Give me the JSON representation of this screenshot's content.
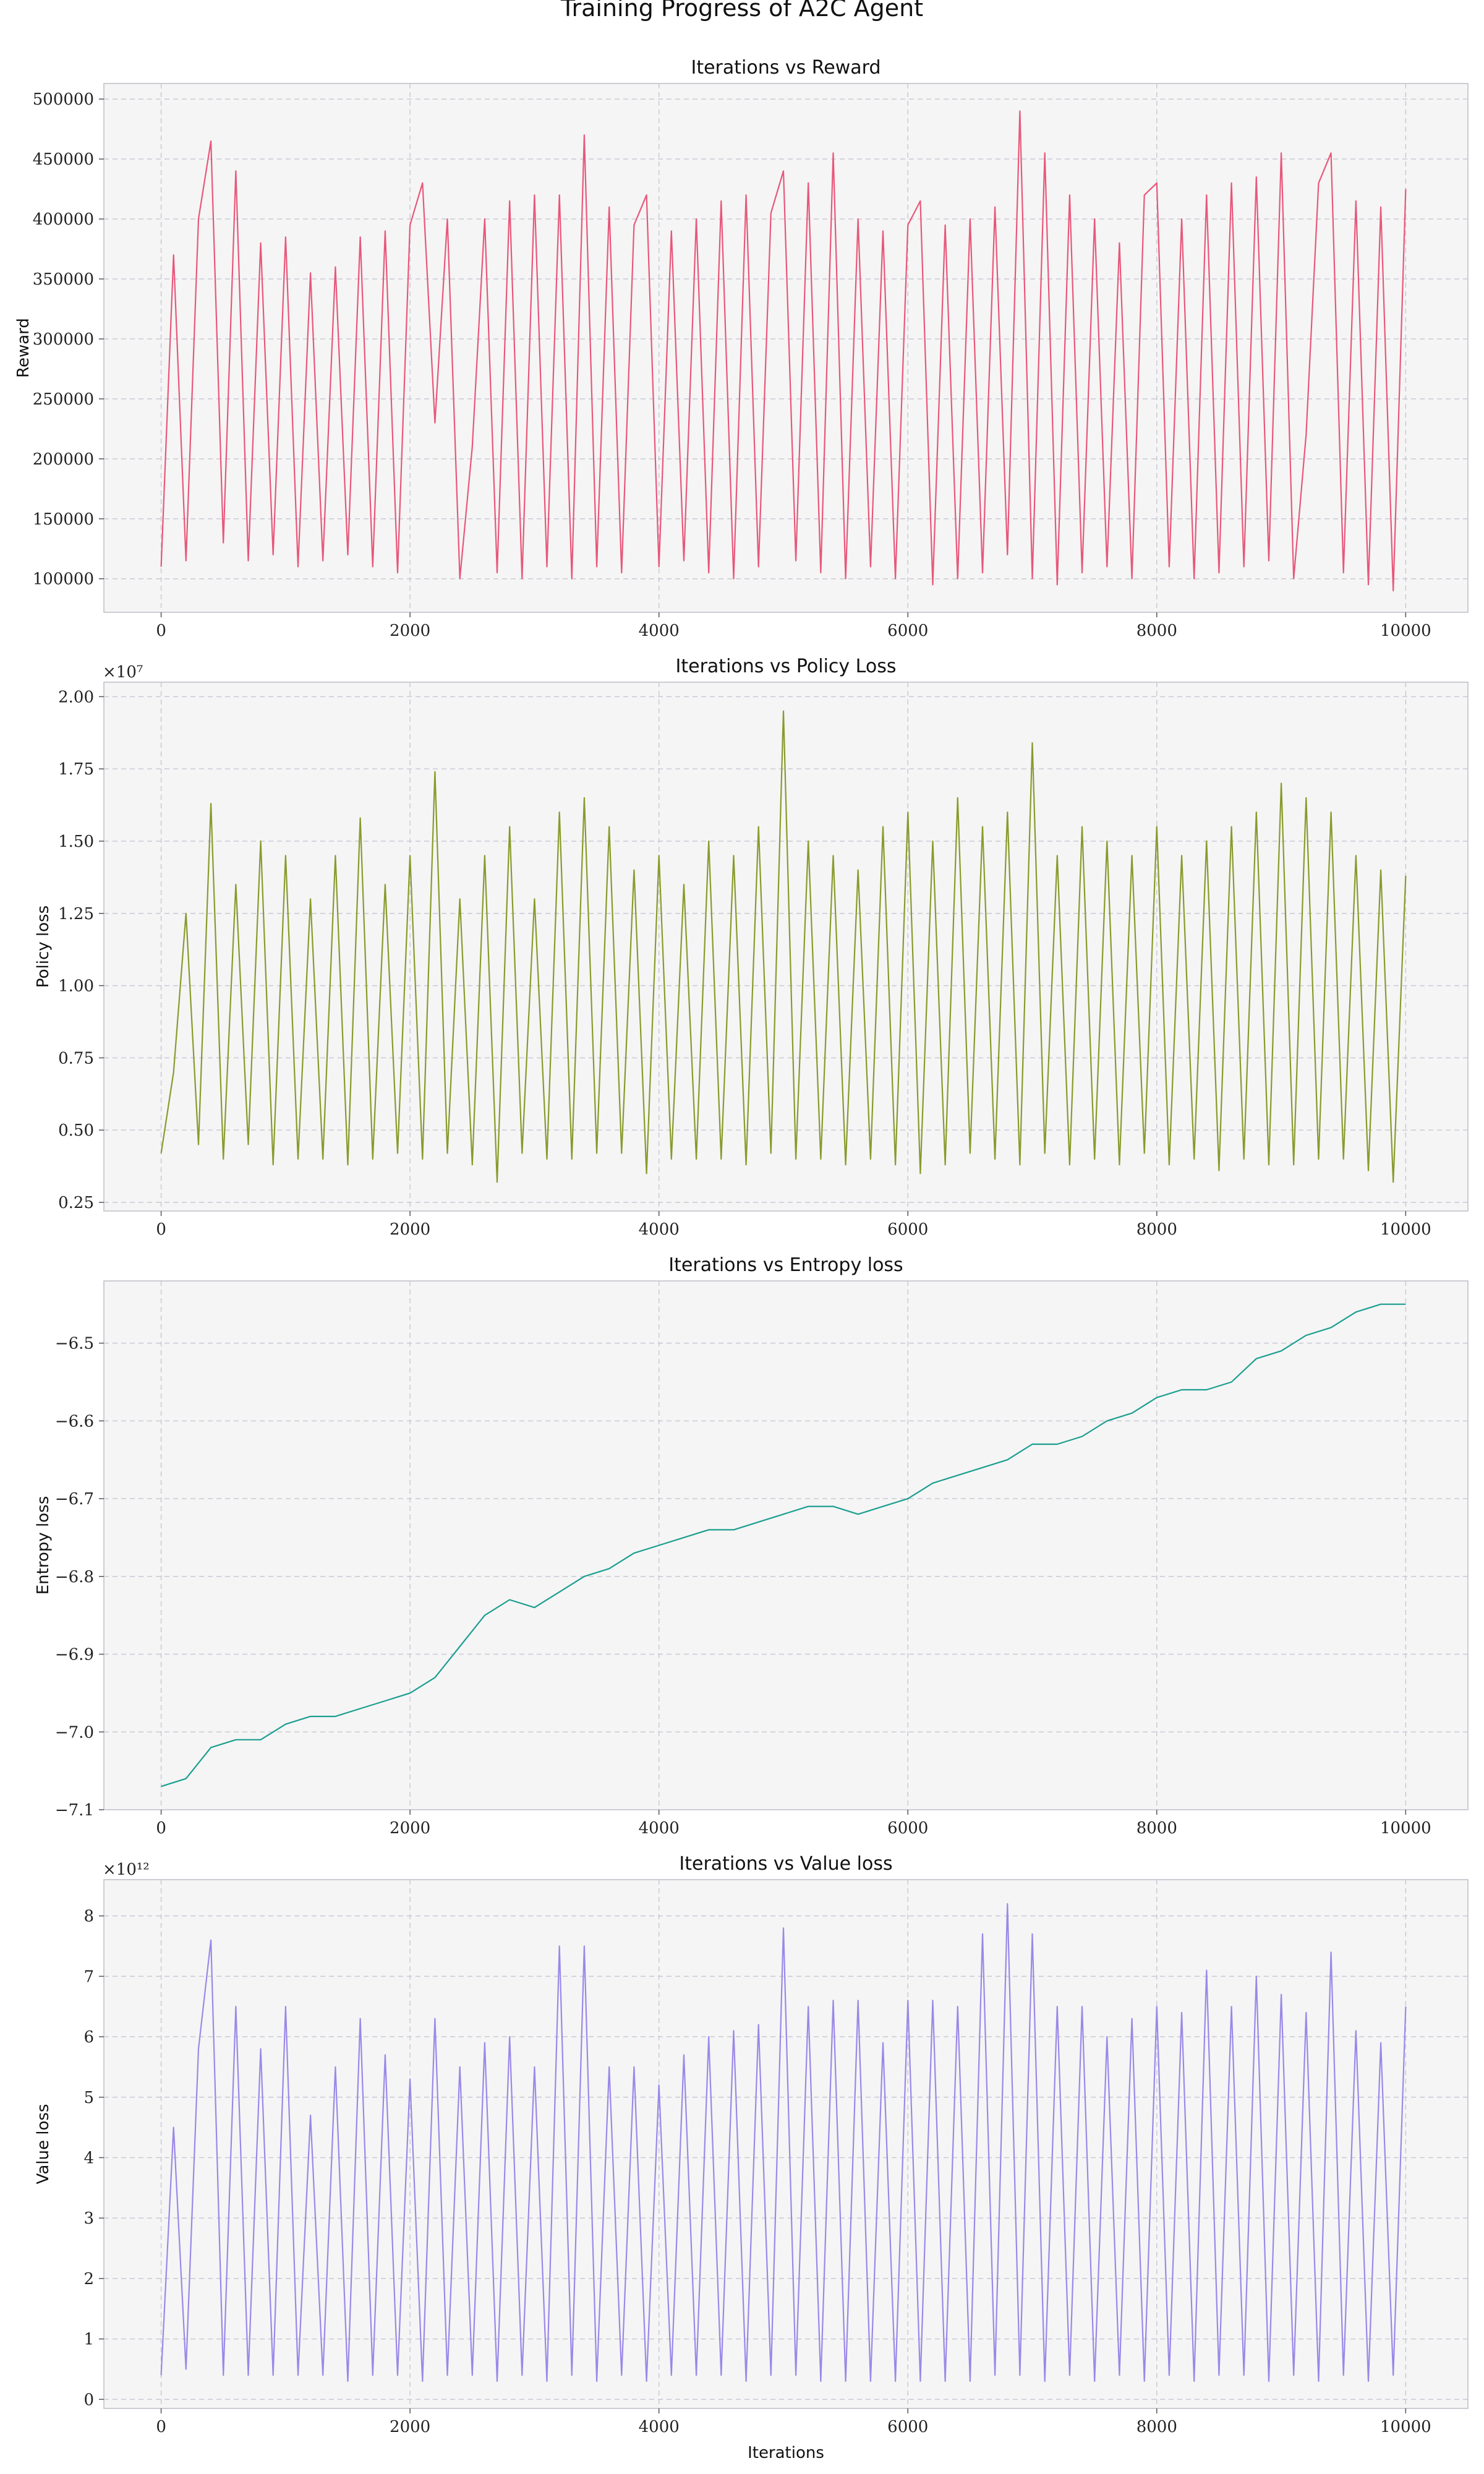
{
  "figure": {
    "suptitle": "Training Progress of A2C Agent"
  },
  "colors": {
    "reward": "#e8577a",
    "policy": "#8a9a2c",
    "entropy": "#1a9e8f",
    "value": "#9b88e8",
    "panel_bg": "#f5f5f5",
    "grid": "#c9c9d6"
  },
  "chart_data": [
    {
      "type": "line",
      "title": "Iterations vs Reward",
      "xlabel": "",
      "ylabel": "Reward",
      "multiplier": "",
      "xlim": [
        -460,
        10500
      ],
      "ylim": [
        72000,
        513000
      ],
      "xticks": [
        0,
        2000,
        4000,
        6000,
        8000,
        10000
      ],
      "xtick_labels": [
        "0",
        "2000",
        "4000",
        "6000",
        "8000",
        "10000"
      ],
      "yticks": [
        100000,
        150000,
        200000,
        250000,
        300000,
        350000,
        400000,
        450000,
        500000
      ],
      "ytick_labels": [
        "100000",
        "150000",
        "200000",
        "250000",
        "300000",
        "350000",
        "400000",
        "450000",
        "500000"
      ],
      "grid": true,
      "series": [
        {
          "x": [
            0,
            100,
            200,
            300,
            400,
            500,
            600,
            700,
            800,
            900,
            1000,
            1100,
            1200,
            1300,
            1400,
            1500,
            1600,
            1700,
            1800,
            1900,
            2000,
            2100,
            2200,
            2300,
            2400,
            2500,
            2600,
            2700,
            2800,
            2900,
            3000,
            3100,
            3200,
            3300,
            3400,
            3500,
            3600,
            3700,
            3800,
            3900,
            4000,
            4100,
            4200,
            4300,
            4400,
            4500,
            4600,
            4700,
            4800,
            4900,
            5000,
            5100,
            5200,
            5300,
            5400,
            5500,
            5600,
            5700,
            5800,
            5900,
            6000,
            6100,
            6200,
            6300,
            6400,
            6500,
            6600,
            6700,
            6800,
            6900,
            7000,
            7100,
            7200,
            7300,
            7400,
            7500,
            7600,
            7700,
            7800,
            7900,
            8000,
            8100,
            8200,
            8300,
            8400,
            8500,
            8600,
            8700,
            8800,
            8900,
            9000,
            9100,
            9200,
            9300,
            9400,
            9500,
            9600,
            9700,
            9800,
            9900,
            10000
          ],
          "y": [
            110000,
            370000,
            115000,
            400000,
            465000,
            130000,
            440000,
            115000,
            380000,
            120000,
            385000,
            110000,
            355000,
            115000,
            360000,
            120000,
            385000,
            110000,
            390000,
            105000,
            395000,
            430000,
            230000,
            400000,
            100000,
            210000,
            400000,
            105000,
            415000,
            100000,
            420000,
            110000,
            420000,
            100000,
            470000,
            110000,
            410000,
            105000,
            395000,
            420000,
            110000,
            390000,
            115000,
            400000,
            105000,
            415000,
            100000,
            420000,
            110000,
            405000,
            440000,
            115000,
            430000,
            105000,
            455000,
            100000,
            400000,
            110000,
            390000,
            100000,
            395000,
            415000,
            95000,
            395000,
            100000,
            400000,
            105000,
            410000,
            120000,
            490000,
            100000,
            455000,
            95000,
            420000,
            105000,
            400000,
            110000,
            380000,
            100000,
            420000,
            430000,
            110000,
            400000,
            100000,
            420000,
            105000,
            430000,
            110000,
            435000,
            115000,
            455000,
            100000,
            220000,
            430000,
            455000,
            105000,
            415000,
            95000,
            410000,
            90000,
            425000
          ]
        }
      ]
    },
    {
      "type": "line",
      "title": "Iterations vs Policy Loss",
      "xlabel": "",
      "ylabel": "Policy loss",
      "multiplier": "×10⁷",
      "xlim": [
        -460,
        10500
      ],
      "ylim": [
        0.22,
        2.05
      ],
      "xticks": [
        0,
        2000,
        4000,
        6000,
        8000,
        10000
      ],
      "xtick_labels": [
        "0",
        "2000",
        "4000",
        "6000",
        "8000",
        "10000"
      ],
      "yticks": [
        0.25,
        0.5,
        0.75,
        1.0,
        1.25,
        1.5,
        1.75,
        2.0
      ],
      "ytick_labels": [
        "0.25",
        "0.50",
        "0.75",
        "1.00",
        "1.25",
        "1.50",
        "1.75",
        "2.00"
      ],
      "grid": true,
      "series": [
        {
          "x": [
            0,
            100,
            200,
            300,
            400,
            500,
            600,
            700,
            800,
            900,
            1000,
            1100,
            1200,
            1300,
            1400,
            1500,
            1600,
            1700,
            1800,
            1900,
            2000,
            2100,
            2200,
            2300,
            2400,
            2500,
            2600,
            2700,
            2800,
            2900,
            3000,
            3100,
            3200,
            3300,
            3400,
            3500,
            3600,
            3700,
            3800,
            3900,
            4000,
            4100,
            4200,
            4300,
            4400,
            4500,
            4600,
            4700,
            4800,
            4900,
            5000,
            5100,
            5200,
            5300,
            5400,
            5500,
            5600,
            5700,
            5800,
            5900,
            6000,
            6100,
            6200,
            6300,
            6400,
            6500,
            6600,
            6700,
            6800,
            6900,
            7000,
            7100,
            7200,
            7300,
            7400,
            7500,
            7600,
            7700,
            7800,
            7900,
            8000,
            8100,
            8200,
            8300,
            8400,
            8500,
            8600,
            8700,
            8800,
            8900,
            9000,
            9100,
            9200,
            9300,
            9400,
            9500,
            9600,
            9700,
            9800,
            9900,
            10000
          ],
          "y": [
            0.42,
            0.7,
            1.25,
            0.45,
            1.63,
            0.4,
            1.35,
            0.45,
            1.5,
            0.38,
            1.45,
            0.4,
            1.3,
            0.4,
            1.45,
            0.38,
            1.58,
            0.4,
            1.35,
            0.42,
            1.45,
            0.4,
            1.74,
            0.42,
            1.3,
            0.38,
            1.45,
            0.32,
            1.55,
            0.42,
            1.3,
            0.4,
            1.6,
            0.4,
            1.65,
            0.42,
            1.55,
            0.42,
            1.4,
            0.35,
            1.45,
            0.4,
            1.35,
            0.4,
            1.5,
            0.4,
            1.45,
            0.38,
            1.55,
            0.42,
            1.95,
            0.4,
            1.5,
            0.4,
            1.45,
            0.38,
            1.4,
            0.4,
            1.55,
            0.38,
            1.6,
            0.35,
            1.5,
            0.38,
            1.65,
            0.42,
            1.55,
            0.4,
            1.6,
            0.38,
            1.84,
            0.42,
            1.45,
            0.38,
            1.55,
            0.4,
            1.5,
            0.38,
            1.45,
            0.42,
            1.55,
            0.38,
            1.45,
            0.4,
            1.5,
            0.36,
            1.55,
            0.4,
            1.6,
            0.38,
            1.7,
            0.38,
            1.65,
            0.4,
            1.6,
            0.4,
            1.45,
            0.36,
            1.4,
            0.32,
            1.38
          ]
        }
      ]
    },
    {
      "type": "line",
      "title": "Iterations vs Entropy loss",
      "xlabel": "",
      "ylabel": "Entropy loss",
      "multiplier": "",
      "xlim": [
        -460,
        10500
      ],
      "ylim": [
        -7.1,
        -6.42
      ],
      "xticks": [
        0,
        2000,
        4000,
        6000,
        8000,
        10000
      ],
      "xtick_labels": [
        "0",
        "2000",
        "4000",
        "6000",
        "8000",
        "10000"
      ],
      "yticks": [
        -7.1,
        -7.0,
        -6.9,
        -6.8,
        -6.7,
        -6.6,
        -6.5
      ],
      "ytick_labels": [
        "−7.1",
        "−7.0",
        "−6.9",
        "−6.8",
        "−6.7",
        "−6.6",
        "−6.5"
      ],
      "grid": true,
      "series": [
        {
          "x": [
            0,
            200,
            400,
            600,
            800,
            1000,
            1200,
            1400,
            1600,
            1800,
            2000,
            2200,
            2400,
            2600,
            2800,
            3000,
            3200,
            3400,
            3600,
            3800,
            4000,
            4200,
            4400,
            4600,
            4800,
            5000,
            5200,
            5400,
            5600,
            5800,
            6000,
            6200,
            6400,
            6600,
            6800,
            7000,
            7200,
            7400,
            7600,
            7800,
            8000,
            8200,
            8400,
            8600,
            8800,
            9000,
            9200,
            9400,
            9600,
            9800,
            10000
          ],
          "y": [
            -7.07,
            -7.06,
            -7.02,
            -7.01,
            -7.01,
            -6.99,
            -6.98,
            -6.98,
            -6.97,
            -6.96,
            -6.95,
            -6.93,
            -6.89,
            -6.85,
            -6.83,
            -6.84,
            -6.82,
            -6.8,
            -6.79,
            -6.77,
            -6.76,
            -6.75,
            -6.74,
            -6.74,
            -6.73,
            -6.72,
            -6.71,
            -6.71,
            -6.72,
            -6.71,
            -6.7,
            -6.68,
            -6.67,
            -6.66,
            -6.65,
            -6.63,
            -6.63,
            -6.62,
            -6.6,
            -6.59,
            -6.57,
            -6.56,
            -6.56,
            -6.55,
            -6.52,
            -6.51,
            -6.49,
            -6.48,
            -6.46,
            -6.45,
            -6.45
          ]
        }
      ]
    },
    {
      "type": "line",
      "title": "Iterations vs Value loss",
      "xlabel": "Iterations",
      "ylabel": "Value loss",
      "multiplier": "×10¹²",
      "xlim": [
        -460,
        10500
      ],
      "ylim": [
        -0.15,
        8.6
      ],
      "xticks": [
        0,
        2000,
        4000,
        6000,
        8000,
        10000
      ],
      "xtick_labels": [
        "0",
        "2000",
        "4000",
        "6000",
        "8000",
        "10000"
      ],
      "yticks": [
        0,
        1,
        2,
        3,
        4,
        5,
        6,
        7,
        8
      ],
      "ytick_labels": [
        "0",
        "1",
        "2",
        "3",
        "4",
        "5",
        "6",
        "7",
        "8"
      ],
      "grid": true,
      "series": [
        {
          "x": [
            0,
            100,
            200,
            300,
            400,
            500,
            600,
            700,
            800,
            900,
            1000,
            1100,
            1200,
            1300,
            1400,
            1500,
            1600,
            1700,
            1800,
            1900,
            2000,
            2100,
            2200,
            2300,
            2400,
            2500,
            2600,
            2700,
            2800,
            2900,
            3000,
            3100,
            3200,
            3300,
            3400,
            3500,
            3600,
            3700,
            3800,
            3900,
            4000,
            4100,
            4200,
            4300,
            4400,
            4500,
            4600,
            4700,
            4800,
            4900,
            5000,
            5100,
            5200,
            5300,
            5400,
            5500,
            5600,
            5700,
            5800,
            5900,
            6000,
            6100,
            6200,
            6300,
            6400,
            6500,
            6600,
            6700,
            6800,
            6900,
            7000,
            7100,
            7200,
            7300,
            7400,
            7500,
            7600,
            7700,
            7800,
            7900,
            8000,
            8100,
            8200,
            8300,
            8400,
            8500,
            8600,
            8700,
            8800,
            8900,
            9000,
            9100,
            9200,
            9300,
            9400,
            9500,
            9600,
            9700,
            9800,
            9900,
            10000
          ],
          "y": [
            0.4,
            4.5,
            0.5,
            5.8,
            7.6,
            0.4,
            6.5,
            0.4,
            5.8,
            0.4,
            6.5,
            0.4,
            4.7,
            0.4,
            5.5,
            0.3,
            6.3,
            0.4,
            5.7,
            0.4,
            5.3,
            0.3,
            6.3,
            0.4,
            5.5,
            0.4,
            5.9,
            0.3,
            6.0,
            0.4,
            5.5,
            0.3,
            7.5,
            0.4,
            7.5,
            0.3,
            5.5,
            0.4,
            5.5,
            0.3,
            5.2,
            0.4,
            5.7,
            0.4,
            6.0,
            0.4,
            6.1,
            0.3,
            6.2,
            0.4,
            7.8,
            0.4,
            6.5,
            0.3,
            6.6,
            0.3,
            6.6,
            0.3,
            5.9,
            0.3,
            6.6,
            0.3,
            6.6,
            0.3,
            6.5,
            0.3,
            7.7,
            0.4,
            8.2,
            0.4,
            7.7,
            0.3,
            6.5,
            0.4,
            6.5,
            0.3,
            6.0,
            0.4,
            6.3,
            0.3,
            6.5,
            0.4,
            6.4,
            0.3,
            7.1,
            0.4,
            6.5,
            0.4,
            7.0,
            0.3,
            6.7,
            0.4,
            6.4,
            0.3,
            7.4,
            0.4,
            6.1,
            0.3,
            5.9,
            0.4,
            6.5
          ]
        }
      ]
    }
  ]
}
